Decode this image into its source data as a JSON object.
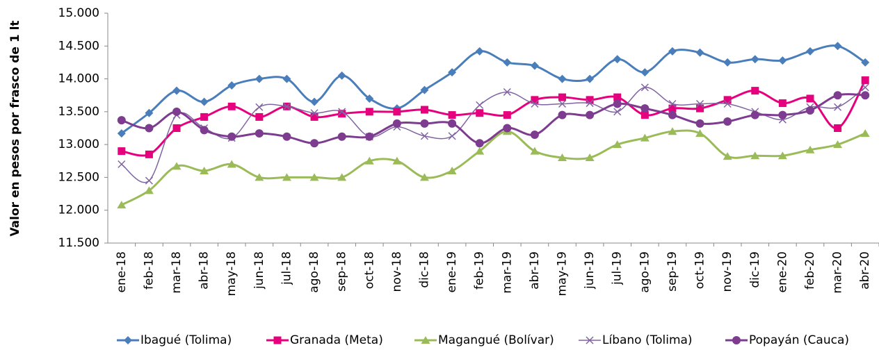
{
  "chart_data": {
    "type": "line",
    "y_label": "Valor en pesos por frasco de 1 lt",
    "categories": [
      "ene-18",
      "feb-18",
      "mar-18",
      "abr-18",
      "may-18",
      "jun-18",
      "jul-18",
      "ago-18",
      "sep-18",
      "oct-18",
      "nov-18",
      "dic-18",
      "ene-19",
      "feb-19",
      "mar-19",
      "abr-19",
      "may-19",
      "jun-19",
      "jul-19",
      "ago-19",
      "sep-19",
      "oct-19",
      "nov-19",
      "dic-19",
      "ene-20",
      "feb-20",
      "mar-20",
      "abr-20"
    ],
    "series": [
      {
        "name": "Ibagué (Tolima)",
        "color": "#4a7ebb",
        "marker": "diamond",
        "values": [
          13170,
          13480,
          13820,
          13650,
          13900,
          14000,
          14000,
          13650,
          14050,
          13700,
          13550,
          13830,
          14100,
          14420,
          14250,
          14200,
          14000,
          14000,
          14300,
          14100,
          14420,
          14400,
          14250,
          14300,
          14280,
          14420,
          14500,
          14250
        ]
      },
      {
        "name": "Granada (Meta)",
        "color": "#e6007e",
        "marker": "square",
        "values": [
          12900,
          12850,
          13250,
          13420,
          13580,
          13420,
          13580,
          13420,
          13470,
          13500,
          13500,
          13530,
          13450,
          13480,
          13450,
          13680,
          13720,
          13680,
          13720,
          13450,
          13550,
          13550,
          13680,
          13820,
          13630,
          13700,
          13250,
          13980
        ]
      },
      {
        "name": "Magangué (Bolívar)",
        "color": "#9bbb59",
        "marker": "triangle",
        "values": [
          12080,
          12300,
          12670,
          12600,
          12700,
          12500,
          12500,
          12500,
          12500,
          12750,
          12750,
          12500,
          12600,
          12900,
          13200,
          12900,
          12800,
          12800,
          13000,
          13100,
          13200,
          13170,
          12820,
          12830,
          12830,
          12920,
          13000,
          13170
        ]
      },
      {
        "name": "Líbano (Tolima)",
        "color": "#8064a2",
        "marker": "x",
        "values": [
          12700,
          12450,
          13450,
          13250,
          13100,
          13570,
          13580,
          13480,
          13500,
          13120,
          13270,
          13130,
          13130,
          13600,
          13800,
          13620,
          13620,
          13630,
          13500,
          13870,
          13620,
          13620,
          13620,
          13500,
          13380,
          13570,
          13570,
          13870
        ]
      },
      {
        "name": "Popayán (Cauca)",
        "color": "#7d3c8f",
        "marker": "circle",
        "values": [
          13370,
          13250,
          13500,
          13220,
          13120,
          13170,
          13120,
          13020,
          13120,
          13120,
          13320,
          13320,
          13320,
          13020,
          13250,
          13150,
          13450,
          13450,
          13620,
          13550,
          13450,
          13320,
          13350,
          13450,
          13450,
          13520,
          13750,
          13750
        ]
      }
    ],
    "ylim": [
      11500,
      15000
    ],
    "yticks": [
      {
        "value": 11500,
        "label": "11.500"
      },
      {
        "value": 12000,
        "label": "12.000"
      },
      {
        "value": 12500,
        "label": "12.500"
      },
      {
        "value": 13000,
        "label": "13.000"
      },
      {
        "value": 13500,
        "label": "13.500"
      },
      {
        "value": 14000,
        "label": "14.000"
      },
      {
        "value": 14500,
        "label": "14.500"
      },
      {
        "value": 15000,
        "label": "15.000"
      }
    ],
    "grid": false,
    "legend": "bottom"
  }
}
